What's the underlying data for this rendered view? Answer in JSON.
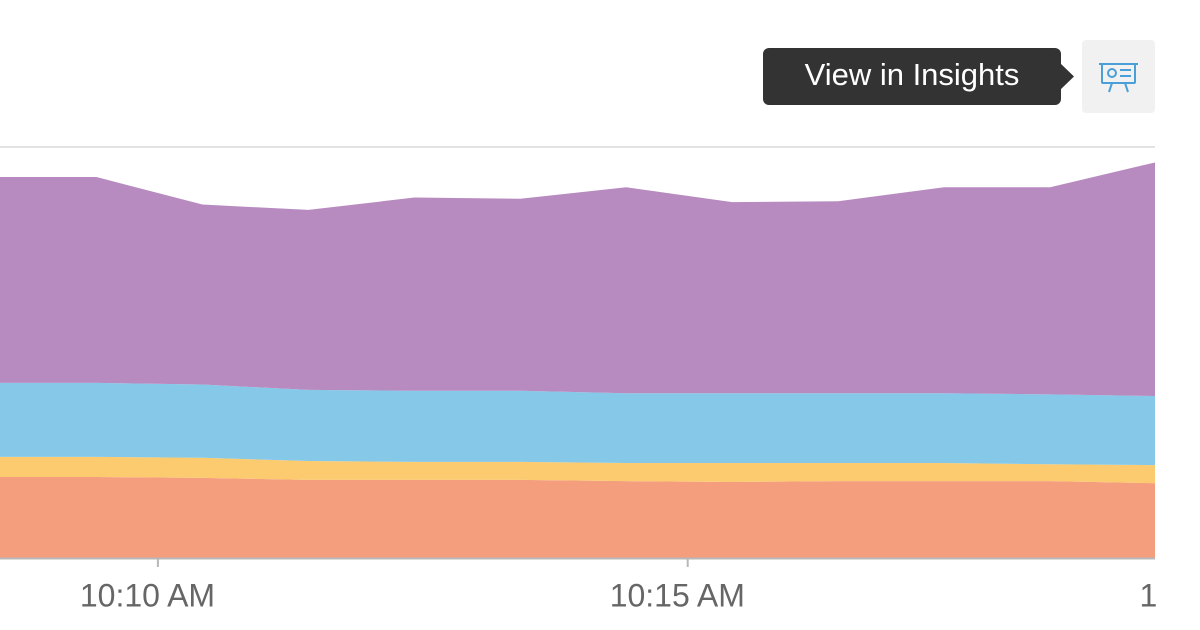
{
  "tooltip": "View in Insights",
  "chart_data": {
    "type": "stacked-area",
    "x": [
      8.42,
      9.42,
      10.42,
      11.42,
      12.42,
      13.42,
      14.42,
      15.42,
      16.42,
      17.42,
      18.42,
      19.42
    ],
    "xlim": [
      8.51,
      19.41
    ],
    "xticks": [
      {
        "value": 10,
        "label": "10:10 AM"
      },
      {
        "value": 15,
        "label": "10:15 AM"
      },
      {
        "value": 20,
        "label": "1"
      }
    ],
    "ylim": [
      0,
      100
    ],
    "series": [
      {
        "color": "#f59e7e",
        "values": [
          19.7,
          19.7,
          19.5,
          19.0,
          19.0,
          19.0,
          18.7,
          18.5,
          18.7,
          18.7,
          18.7,
          18.2
        ]
      },
      {
        "color": "#fccb70",
        "values": [
          4.9,
          4.9,
          4.9,
          4.6,
          4.4,
          4.4,
          4.4,
          4.6,
          4.4,
          4.4,
          4.1,
          4.4
        ]
      },
      {
        "color": "#86c8e8",
        "values": [
          18.0,
          18.0,
          17.8,
          17.3,
          17.3,
          17.3,
          17.0,
          17.0,
          17.0,
          17.0,
          17.0,
          16.8
        ]
      },
      {
        "color": "#b88bc0",
        "values": [
          50.1,
          50.1,
          43.8,
          43.8,
          47.0,
          46.7,
          50.1,
          46.5,
          46.7,
          50.1,
          50.4,
          56.9
        ]
      }
    ]
  }
}
